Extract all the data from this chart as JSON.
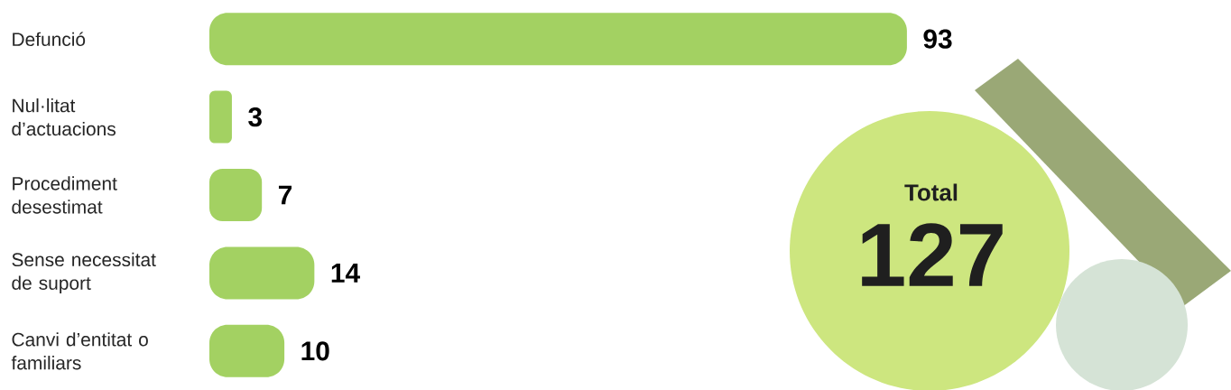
{
  "chart_data": {
    "type": "bar",
    "orientation": "horizontal",
    "categories": [
      "Defunció",
      "Nul·litat d’actuacions",
      "Procediment desestimat",
      "Sense necessitat de suport",
      "Canvi d’entitat o familiars"
    ],
    "values": [
      93,
      3,
      7,
      14,
      10
    ],
    "color": "#a3d162",
    "data_labels": true,
    "annotations": [
      "Total",
      "127"
    ]
  }
}
